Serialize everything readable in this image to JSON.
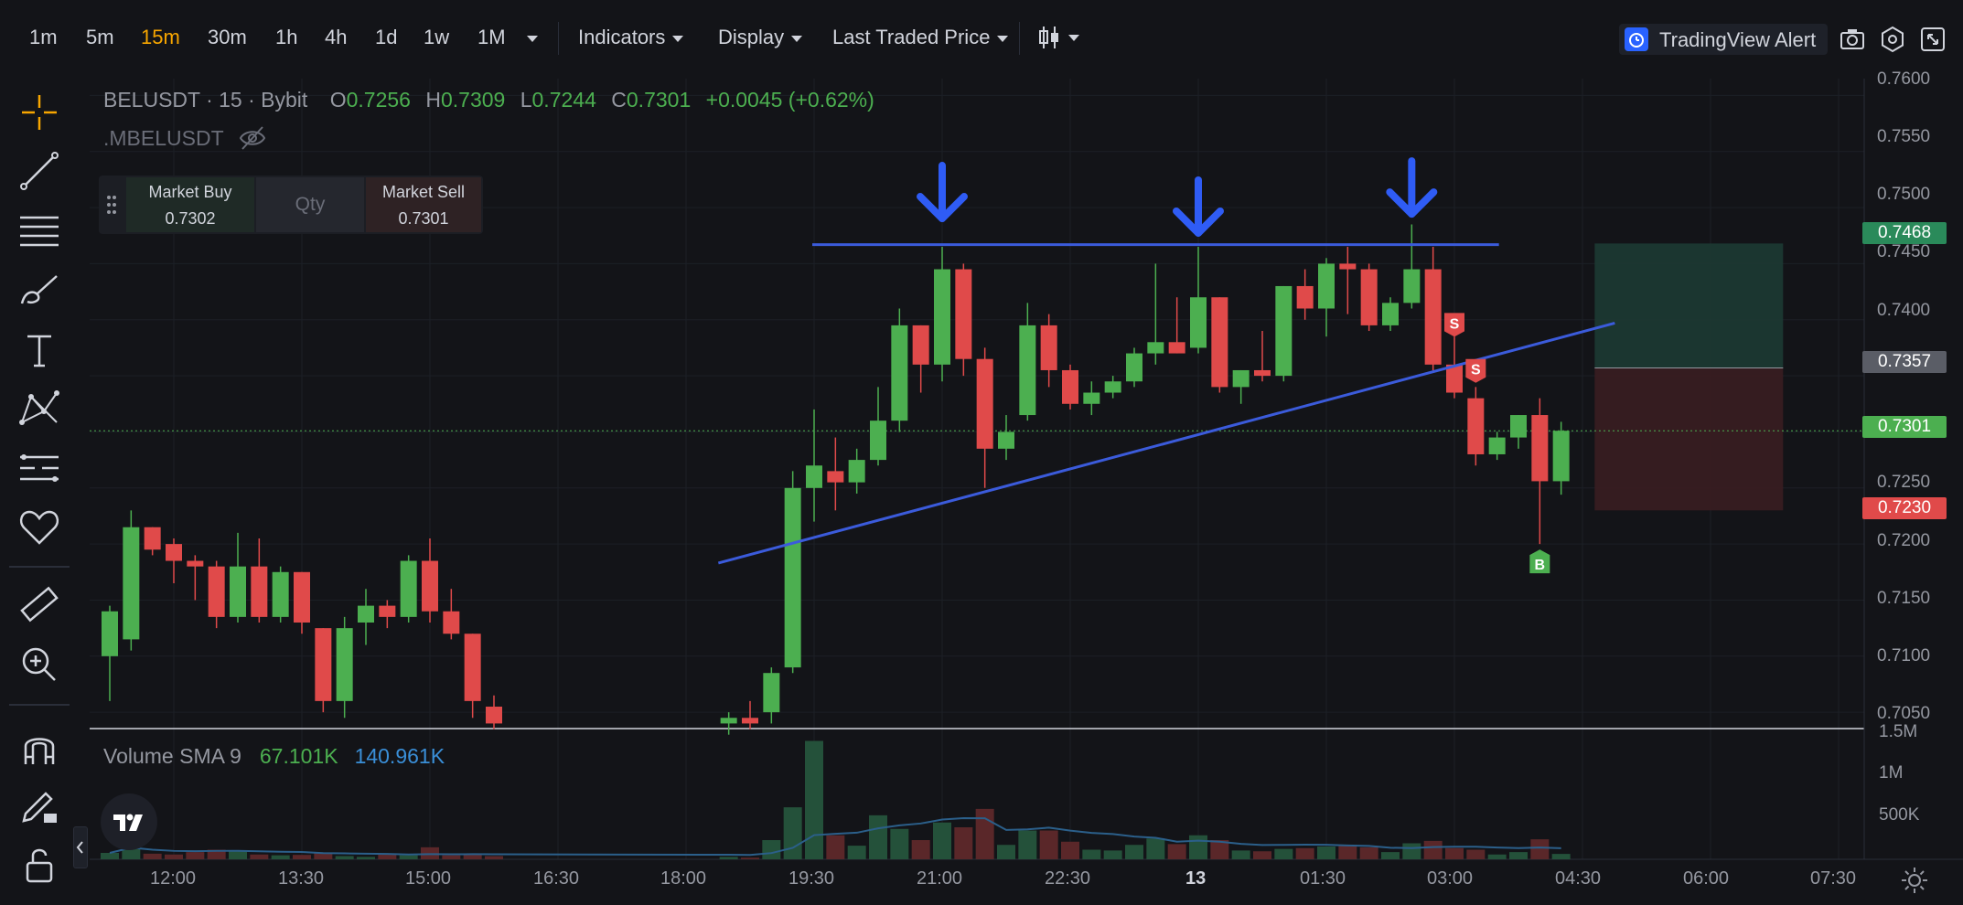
{
  "toolbar": {
    "timeframes": [
      {
        "label": "1m",
        "active": false
      },
      {
        "label": "5m",
        "active": false
      },
      {
        "label": "15m",
        "active": true
      },
      {
        "label": "30m",
        "active": false
      },
      {
        "label": "1h",
        "active": false
      },
      {
        "label": "4h",
        "active": false
      },
      {
        "label": "1d",
        "active": false
      },
      {
        "label": "1w",
        "active": false
      },
      {
        "label": "1M",
        "active": false
      }
    ],
    "indicators_label": "Indicators",
    "display_label": "Display",
    "price_source_label": "Last Traded Price",
    "alert_label": "TradingView Alert",
    "accent_color": "#f7a600",
    "icons": [
      "chevron-down-icon",
      "chart-style-icon",
      "alarm-clock-icon",
      "camera-icon",
      "settings-icon",
      "fullscreen-icon"
    ]
  },
  "legend": {
    "symbol": "BELUSDT",
    "interval": "15",
    "exchange": "Bybit",
    "open_key": "O",
    "open": "0.7256",
    "high_key": "H",
    "high": "0.7309",
    "low_key": "L",
    "low": "0.7244",
    "close_key": "C",
    "close": "0.7301",
    "change": "+0.0045 (+0.62%)",
    "sub_symbol": ".MBELUSDT"
  },
  "trade_panel": {
    "buy_label": "Market Buy",
    "buy_price": "0.7302",
    "qty_placeholder": "Qty",
    "sell_label": "Market Sell",
    "sell_price": "0.7301"
  },
  "price_axis": {
    "labels": [
      "0.7600",
      "0.7550",
      "0.7500",
      "0.7450",
      "0.7400",
      "0.7250",
      "0.7200",
      "0.7150",
      "0.7100",
      "0.7050"
    ],
    "tags": {
      "take_profit": "0.7468",
      "entry": "0.7357",
      "last": "0.7301",
      "stop_loss": "0.7230"
    }
  },
  "time_axis": {
    "labels": [
      "12:00",
      "13:30",
      "15:00",
      "16:30",
      "18:00",
      "19:30",
      "21:00",
      "22:30",
      "13",
      "01:30",
      "03:00",
      "04:30",
      "06:00",
      "07:30"
    ],
    "bold": "13"
  },
  "volume": {
    "label": "Volume SMA 9",
    "value": "67.101K",
    "sma": "140.961K",
    "axis_labels": [
      "1.5M",
      "1M",
      "500K"
    ]
  },
  "markers": {
    "sell": "S",
    "buy": "B"
  },
  "colors": {
    "up": "#4caf50",
    "down": "#e04a4a",
    "trendline": "#3b5bdb",
    "arrow": "#2f5cf5",
    "tp_zone": "#1d3a33",
    "sl_zone": "#3a1d21"
  },
  "chart_data": {
    "type": "candlestick",
    "y_range": [
      0.7033,
      0.7615
    ],
    "candles": [
      {
        "t": "11:15",
        "o": 0.71,
        "h": 0.7145,
        "l": 0.706,
        "c": 0.714
      },
      {
        "t": "11:30",
        "o": 0.7115,
        "h": 0.723,
        "l": 0.7105,
        "c": 0.7215
      },
      {
        "t": "11:45",
        "o": 0.7215,
        "h": 0.7215,
        "l": 0.719,
        "c": 0.7195
      },
      {
        "t": "12:00",
        "o": 0.72,
        "h": 0.7205,
        "l": 0.7165,
        "c": 0.7185
      },
      {
        "t": "12:15",
        "o": 0.7185,
        "h": 0.719,
        "l": 0.715,
        "c": 0.718
      },
      {
        "t": "12:30",
        "o": 0.718,
        "h": 0.7185,
        "l": 0.7125,
        "c": 0.7135
      },
      {
        "t": "12:45",
        "o": 0.7135,
        "h": 0.721,
        "l": 0.713,
        "c": 0.718
      },
      {
        "t": "13:00",
        "o": 0.718,
        "h": 0.7205,
        "l": 0.713,
        "c": 0.7135
      },
      {
        "t": "13:15",
        "o": 0.7135,
        "h": 0.718,
        "l": 0.713,
        "c": 0.7175
      },
      {
        "t": "13:30",
        "o": 0.7175,
        "h": 0.7175,
        "l": 0.712,
        "c": 0.713
      },
      {
        "t": "13:45",
        "o": 0.7125,
        "h": 0.7125,
        "l": 0.705,
        "c": 0.706
      },
      {
        "t": "14:00",
        "o": 0.706,
        "h": 0.7135,
        "l": 0.7045,
        "c": 0.7125
      },
      {
        "t": "14:15",
        "o": 0.713,
        "h": 0.716,
        "l": 0.711,
        "c": 0.7145
      },
      {
        "t": "14:30",
        "o": 0.7145,
        "h": 0.715,
        "l": 0.7125,
        "c": 0.7135
      },
      {
        "t": "14:45",
        "o": 0.7135,
        "h": 0.719,
        "l": 0.713,
        "c": 0.7185
      },
      {
        "t": "15:00",
        "o": 0.7185,
        "h": 0.7205,
        "l": 0.713,
        "c": 0.714
      },
      {
        "t": "15:15",
        "o": 0.714,
        "h": 0.716,
        "l": 0.7115,
        "c": 0.712
      },
      {
        "t": "15:30",
        "o": 0.712,
        "h": 0.712,
        "l": 0.7045,
        "c": 0.706
      },
      {
        "t": "15:45",
        "o": 0.7055,
        "h": 0.7065,
        "l": 0.7035,
        "c": 0.704
      },
      {
        "t": "18:30",
        "o": 0.704,
        "h": 0.705,
        "l": 0.703,
        "c": 0.7045
      },
      {
        "t": "18:45",
        "o": 0.7045,
        "h": 0.706,
        "l": 0.7035,
        "c": 0.704
      },
      {
        "t": "19:00",
        "o": 0.705,
        "h": 0.709,
        "l": 0.704,
        "c": 0.7085
      },
      {
        "t": "19:15",
        "o": 0.709,
        "h": 0.7265,
        "l": 0.7085,
        "c": 0.725
      },
      {
        "t": "19:30",
        "o": 0.725,
        "h": 0.732,
        "l": 0.722,
        "c": 0.727
      },
      {
        "t": "19:45",
        "o": 0.7265,
        "h": 0.7295,
        "l": 0.723,
        "c": 0.7255
      },
      {
        "t": "20:00",
        "o": 0.7255,
        "h": 0.7285,
        "l": 0.7245,
        "c": 0.7275
      },
      {
        "t": "20:15",
        "o": 0.7275,
        "h": 0.734,
        "l": 0.727,
        "c": 0.731
      },
      {
        "t": "20:30",
        "o": 0.731,
        "h": 0.741,
        "l": 0.73,
        "c": 0.7395
      },
      {
        "t": "20:45",
        "o": 0.7395,
        "h": 0.7395,
        "l": 0.7335,
        "c": 0.736
      },
      {
        "t": "21:00",
        "o": 0.736,
        "h": 0.7465,
        "l": 0.7345,
        "c": 0.7445
      },
      {
        "t": "21:15",
        "o": 0.7445,
        "h": 0.745,
        "l": 0.735,
        "c": 0.7365
      },
      {
        "t": "21:30",
        "o": 0.7365,
        "h": 0.7375,
        "l": 0.725,
        "c": 0.7285
      },
      {
        "t": "21:45",
        "o": 0.7285,
        "h": 0.7315,
        "l": 0.7275,
        "c": 0.73
      },
      {
        "t": "22:00",
        "o": 0.7315,
        "h": 0.7415,
        "l": 0.731,
        "c": 0.7395
      },
      {
        "t": "22:15",
        "o": 0.7395,
        "h": 0.7405,
        "l": 0.734,
        "c": 0.7355
      },
      {
        "t": "22:30",
        "o": 0.7355,
        "h": 0.736,
        "l": 0.732,
        "c": 0.7325
      },
      {
        "t": "22:45",
        "o": 0.7325,
        "h": 0.7345,
        "l": 0.7315,
        "c": 0.7335
      },
      {
        "t": "23:00",
        "o": 0.7335,
        "h": 0.735,
        "l": 0.733,
        "c": 0.7345
      },
      {
        "t": "23:15",
        "o": 0.7345,
        "h": 0.7375,
        "l": 0.734,
        "c": 0.737
      },
      {
        "t": "23:30",
        "o": 0.737,
        "h": 0.745,
        "l": 0.736,
        "c": 0.738
      },
      {
        "t": "23:45",
        "o": 0.738,
        "h": 0.742,
        "l": 0.737,
        "c": 0.737
      },
      {
        "t": "00:00",
        "o": 0.7375,
        "h": 0.7465,
        "l": 0.737,
        "c": 0.742
      },
      {
        "t": "00:15",
        "o": 0.742,
        "h": 0.742,
        "l": 0.7335,
        "c": 0.734
      },
      {
        "t": "00:30",
        "o": 0.734,
        "h": 0.7355,
        "l": 0.7325,
        "c": 0.7355
      },
      {
        "t": "00:45",
        "o": 0.7355,
        "h": 0.739,
        "l": 0.7345,
        "c": 0.735
      },
      {
        "t": "01:00",
        "o": 0.735,
        "h": 0.743,
        "l": 0.7345,
        "c": 0.743
      },
      {
        "t": "01:15",
        "o": 0.743,
        "h": 0.7445,
        "l": 0.74,
        "c": 0.741
      },
      {
        "t": "01:30",
        "o": 0.741,
        "h": 0.7455,
        "l": 0.7385,
        "c": 0.745
      },
      {
        "t": "01:45",
        "o": 0.745,
        "h": 0.7465,
        "l": 0.7405,
        "c": 0.7445
      },
      {
        "t": "02:00",
        "o": 0.7445,
        "h": 0.745,
        "l": 0.739,
        "c": 0.7395
      },
      {
        "t": "02:15",
        "o": 0.7395,
        "h": 0.742,
        "l": 0.739,
        "c": 0.7415
      },
      {
        "t": "02:30",
        "o": 0.7415,
        "h": 0.7485,
        "l": 0.741,
        "c": 0.7445
      },
      {
        "t": "02:45",
        "o": 0.7445,
        "h": 0.7465,
        "l": 0.7355,
        "c": 0.736
      },
      {
        "t": "03:00",
        "o": 0.736,
        "h": 0.7385,
        "l": 0.733,
        "c": 0.7335
      },
      {
        "t": "03:15",
        "o": 0.733,
        "h": 0.734,
        "l": 0.727,
        "c": 0.728
      },
      {
        "t": "03:30",
        "o": 0.728,
        "h": 0.73,
        "l": 0.7275,
        "c": 0.7295
      },
      {
        "t": "03:45",
        "o": 0.7295,
        "h": 0.7315,
        "l": 0.7285,
        "c": 0.7315
      },
      {
        "t": "04:00",
        "o": 0.7315,
        "h": 0.733,
        "l": 0.72,
        "c": 0.7256
      },
      {
        "t": "04:15",
        "o": 0.7256,
        "h": 0.7309,
        "l": 0.7244,
        "c": 0.7301
      }
    ],
    "volume": [
      {
        "t": "11:15",
        "v": 80000,
        "up": true
      },
      {
        "t": "11:30",
        "v": 210000,
        "up": true
      },
      {
        "t": "11:45",
        "v": 70000,
        "up": false
      },
      {
        "t": "12:00",
        "v": 60000,
        "up": false
      },
      {
        "t": "12:15",
        "v": 90000,
        "up": false
      },
      {
        "t": "12:30",
        "v": 120000,
        "up": false
      },
      {
        "t": "12:45",
        "v": 110000,
        "up": true
      },
      {
        "t": "13:00",
        "v": 60000,
        "up": false
      },
      {
        "t": "13:15",
        "v": 50000,
        "up": true
      },
      {
        "t": "13:30",
        "v": 55000,
        "up": false
      },
      {
        "t": "13:45",
        "v": 80000,
        "up": false
      },
      {
        "t": "14:00",
        "v": 40000,
        "up": true
      },
      {
        "t": "14:15",
        "v": 30000,
        "up": true
      },
      {
        "t": "14:30",
        "v": 60000,
        "up": false
      },
      {
        "t": "14:45",
        "v": 50000,
        "up": true
      },
      {
        "t": "15:00",
        "v": 150000,
        "up": false
      },
      {
        "t": "15:15",
        "v": 50000,
        "up": false
      },
      {
        "t": "15:30",
        "v": 60000,
        "up": false
      },
      {
        "t": "15:45",
        "v": 40000,
        "up": false
      },
      {
        "t": "18:30",
        "v": 30000,
        "up": true
      },
      {
        "t": "18:45",
        "v": 20000,
        "up": false
      },
      {
        "t": "19:00",
        "v": 240000,
        "up": true
      },
      {
        "t": "19:15",
        "v": 650000,
        "up": true
      },
      {
        "t": "19:30",
        "v": 1480000,
        "up": true
      },
      {
        "t": "19:45",
        "v": 300000,
        "up": false
      },
      {
        "t": "20:00",
        "v": 170000,
        "up": true
      },
      {
        "t": "20:15",
        "v": 550000,
        "up": true
      },
      {
        "t": "20:30",
        "v": 380000,
        "up": true
      },
      {
        "t": "20:45",
        "v": 240000,
        "up": false
      },
      {
        "t": "21:00",
        "v": 460000,
        "up": true
      },
      {
        "t": "21:15",
        "v": 400000,
        "up": false
      },
      {
        "t": "21:30",
        "v": 630000,
        "up": false
      },
      {
        "t": "21:45",
        "v": 180000,
        "up": true
      },
      {
        "t": "22:00",
        "v": 360000,
        "up": true
      },
      {
        "t": "22:15",
        "v": 360000,
        "up": false
      },
      {
        "t": "22:30",
        "v": 220000,
        "up": false
      },
      {
        "t": "22:45",
        "v": 120000,
        "up": true
      },
      {
        "t": "23:00",
        "v": 110000,
        "up": true
      },
      {
        "t": "23:15",
        "v": 180000,
        "up": true
      },
      {
        "t": "23:30",
        "v": 260000,
        "up": true
      },
      {
        "t": "23:45",
        "v": 190000,
        "up": false
      },
      {
        "t": "00:00",
        "v": 300000,
        "up": true
      },
      {
        "t": "00:15",
        "v": 240000,
        "up": false
      },
      {
        "t": "00:30",
        "v": 110000,
        "up": true
      },
      {
        "t": "00:45",
        "v": 100000,
        "up": false
      },
      {
        "t": "01:00",
        "v": 130000,
        "up": true
      },
      {
        "t": "01:15",
        "v": 140000,
        "up": false
      },
      {
        "t": "01:30",
        "v": 160000,
        "up": true
      },
      {
        "t": "01:45",
        "v": 180000,
        "up": false
      },
      {
        "t": "02:00",
        "v": 150000,
        "up": false
      },
      {
        "t": "02:15",
        "v": 90000,
        "up": true
      },
      {
        "t": "02:30",
        "v": 200000,
        "up": true
      },
      {
        "t": "02:45",
        "v": 230000,
        "up": false
      },
      {
        "t": "03:00",
        "v": 140000,
        "up": false
      },
      {
        "t": "03:15",
        "v": 120000,
        "up": false
      },
      {
        "t": "03:30",
        "v": 60000,
        "up": true
      },
      {
        "t": "03:45",
        "v": 90000,
        "up": true
      },
      {
        "t": "04:00",
        "v": 250000,
        "up": false
      },
      {
        "t": "04:15",
        "v": 67101,
        "up": true
      }
    ]
  }
}
